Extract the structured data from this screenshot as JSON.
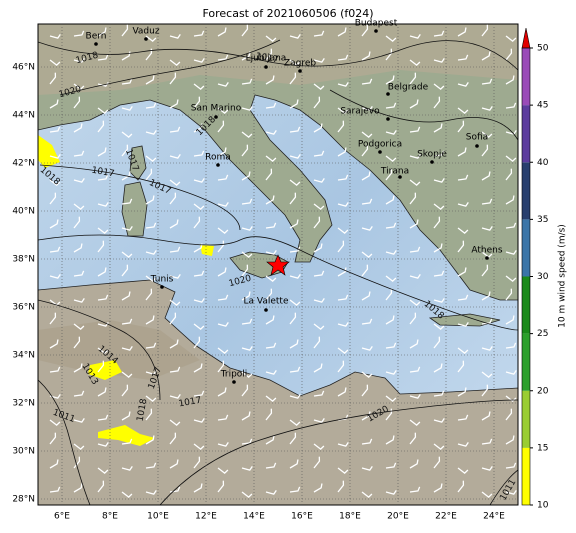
{
  "title": "Forecast of 2021060506 (f024)",
  "lon_labels": [
    "6°E",
    "8°E",
    "10°E",
    "12°E",
    "14°E",
    "16°E",
    "18°E",
    "20°E",
    "22°E",
    "24°E"
  ],
  "lat_labels": [
    "46°N",
    "44°N",
    "42°N",
    "40°N",
    "38°N",
    "36°N",
    "34°N",
    "32°N",
    "30°N",
    "28°N"
  ],
  "cities": [
    "Budapest",
    "Vaduz",
    "Bern",
    "Ljubljana",
    "Zagreb",
    "Belgrade",
    "San Marino",
    "Sarajevo",
    "Sofia",
    "Podgorica",
    "Skopje",
    "Roma",
    "Tirana",
    "Athens",
    "Tunis",
    "La Valette",
    "Tripoli"
  ],
  "isobar_labels": [
    "1017",
    "1018",
    "1020",
    "1017",
    "1018",
    "1017",
    "1020",
    "1018",
    "1017",
    "1014",
    "1013",
    "1017",
    "1018",
    "1017",
    "1011",
    "1020",
    "1018",
    "1011"
  ],
  "colorbar": {
    "label": "10 m wind speed (m/s)",
    "ticks": [
      10,
      15,
      20,
      25,
      30,
      35,
      40,
      45,
      50
    ],
    "colors": [
      "#ffff00",
      "#9acd32",
      "#2ca02c",
      "#1a8a1a",
      "#3a75a8",
      "#283f6e",
      "#5c3c9e",
      "#9a4bb8"
    ],
    "extend_color": "#e00000"
  }
}
